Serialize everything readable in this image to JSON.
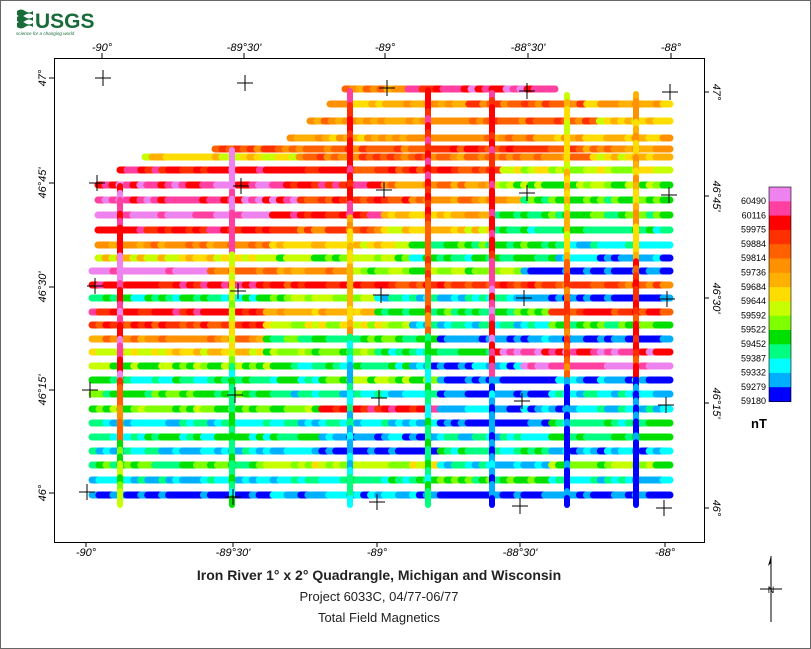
{
  "logo": {
    "name": "USGS",
    "tagline": "science for a changing world",
    "color": "#1a6b3a"
  },
  "map": {
    "title": "Iron River 1° x 2° Quadrangle, Michigan and Wisconsin",
    "subtitle": "Project 6033C, 04/77-06/77",
    "subtitle2": "Total Field Magnetics",
    "lon_labels": [
      "-90°",
      "-89°30'",
      "-89°",
      "-88°30'",
      "-88°"
    ],
    "lat_labels_left": [
      "47°",
      "46°45'",
      "46°30'",
      "46°15'",
      "46°"
    ],
    "lat_labels_right": [
      "47°",
      "46°45'",
      "46°30'",
      "46°15'",
      "46°"
    ]
  },
  "legend": {
    "unit": "nT",
    "breaks": [
      "60490",
      "60116",
      "59975",
      "59884",
      "59814",
      "59736",
      "59684",
      "59644",
      "59592",
      "59522",
      "59452",
      "59387",
      "59332",
      "59279",
      "59180"
    ],
    "colors": [
      "#ee82ee",
      "#ff40a0",
      "#ff0000",
      "#ff3000",
      "#ff6000",
      "#ff9000",
      "#ffb000",
      "#ffdd00",
      "#c8ff00",
      "#80ff00",
      "#00e000",
      "#00ff80",
      "#00ffff",
      "#00b0ff",
      "#0000ff"
    ]
  },
  "north_arrow": {
    "label": "N"
  }
}
